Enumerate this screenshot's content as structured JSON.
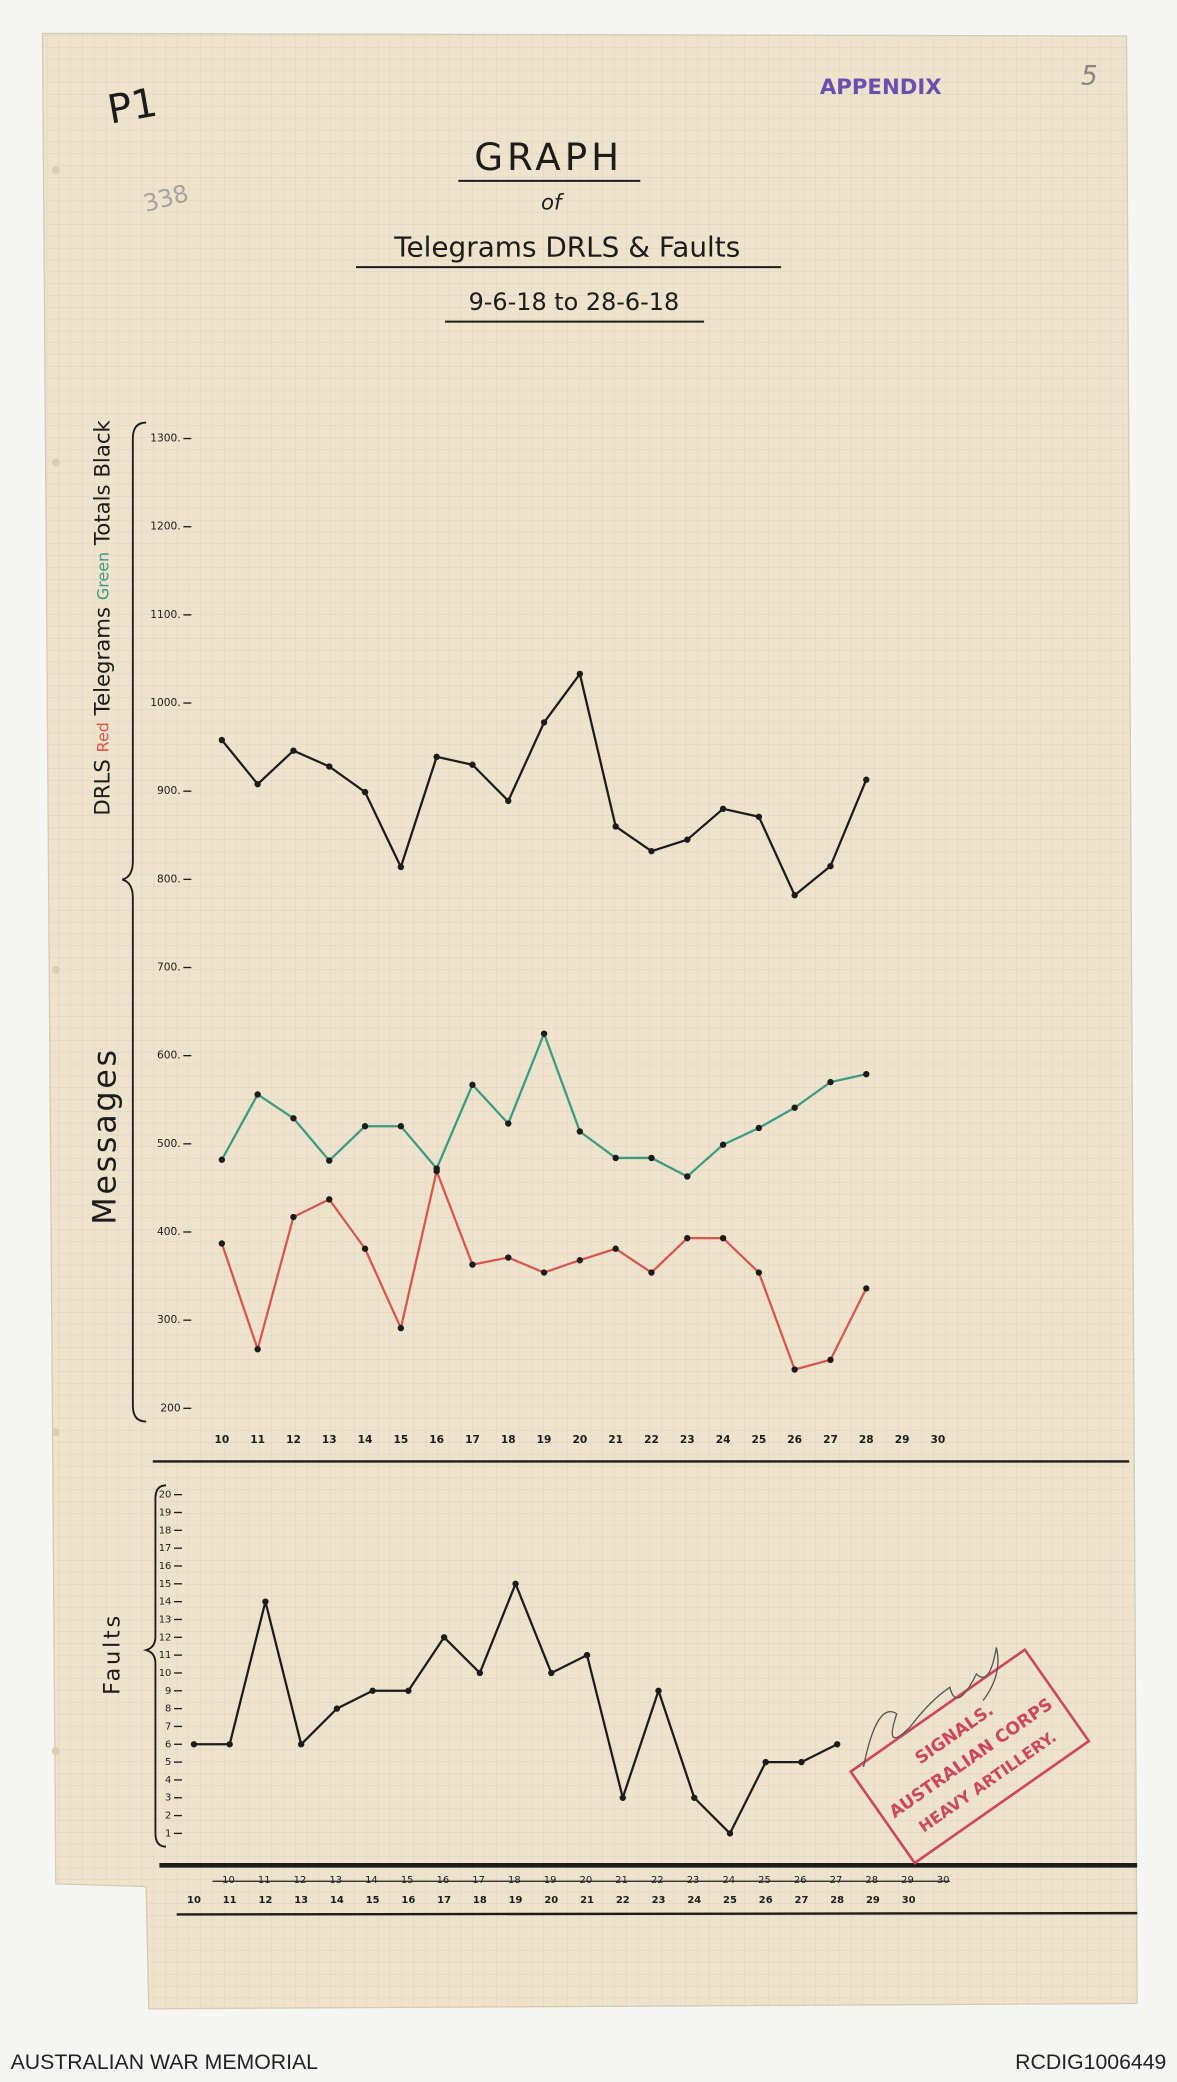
{
  "header": {
    "page_mark": "P1",
    "pencil_number": "338",
    "appendix_stamp": "APPENDIX",
    "page_number": "5",
    "title": "GRAPH",
    "title_of": "of",
    "subtitle": "Telegrams DRLS & Faults",
    "date_range": "9-6-18 to 28-6-18"
  },
  "chart_data": [
    {
      "type": "line",
      "y_label": "Messages",
      "x": [
        10,
        11,
        12,
        13,
        14,
        15,
        16,
        17,
        18,
        19,
        20,
        21,
        22,
        23,
        24,
        25,
        26,
        27,
        28
      ],
      "xlim": [
        10,
        30
      ],
      "xticks": [
        10,
        11,
        12,
        13,
        14,
        15,
        16,
        17,
        18,
        19,
        20,
        21,
        22,
        23,
        24,
        25,
        26,
        27,
        28,
        29,
        30
      ],
      "ylim": [
        200,
        1300
      ],
      "yticks": [
        {
          "value": 200,
          "label": "200"
        },
        {
          "value": 300,
          "label": "300."
        },
        {
          "value": 400,
          "label": "400."
        },
        {
          "value": 500,
          "label": "500."
        },
        {
          "value": 600,
          "label": "600."
        },
        {
          "value": 700,
          "label": "700."
        },
        {
          "value": 800,
          "label": "800."
        },
        {
          "value": 900,
          "label": "900."
        },
        {
          "value": 1000,
          "label": "1000."
        },
        {
          "value": 1100,
          "label": "1100."
        },
        {
          "value": 1200,
          "label": "1200."
        },
        {
          "value": 1300,
          "label": "1300."
        }
      ],
      "grid": true,
      "series": [
        {
          "name": "DRLS",
          "color_label": "Red",
          "color": "#d9534f",
          "values": [
            387,
            267,
            417,
            437,
            381,
            291,
            469,
            363,
            371,
            354,
            368,
            381,
            354,
            393,
            393,
            354,
            244,
            255,
            336
          ]
        },
        {
          "name": "Telegrams",
          "color_label": "Green",
          "color": "#3a9a82",
          "values": [
            482,
            556,
            529,
            481,
            520,
            520,
            472,
            567,
            523,
            625,
            514,
            484,
            484,
            463,
            499,
            518,
            541,
            570,
            579
          ]
        },
        {
          "name": "Totals",
          "color_label": "Black",
          "color": "#1e1c1a",
          "values": [
            958,
            908,
            946,
            928,
            899,
            814,
            939,
            930,
            889,
            978,
            1033,
            860,
            832,
            845,
            880,
            871,
            782,
            815,
            913
          ]
        }
      ]
    },
    {
      "type": "line",
      "y_label": "Faults",
      "x": [
        10,
        11,
        12,
        13,
        14,
        15,
        16,
        17,
        18,
        19,
        20,
        21,
        22,
        23,
        24,
        25,
        26,
        27,
        28
      ],
      "xlim": [
        10,
        30
      ],
      "xticks": [
        10,
        11,
        12,
        13,
        14,
        15,
        16,
        17,
        18,
        19,
        20,
        21,
        22,
        23,
        24,
        25,
        26,
        27,
        28,
        29,
        30
      ],
      "struck_xticks": [
        10,
        11,
        12,
        13,
        14,
        15,
        16,
        17,
        18,
        19,
        20,
        21,
        22,
        23,
        24,
        25,
        26,
        27,
        28,
        29,
        30
      ],
      "ylim": [
        1,
        20
      ],
      "yticks": [
        1,
        2,
        3,
        4,
        5,
        6,
        7,
        8,
        9,
        10,
        11,
        12,
        13,
        14,
        15,
        16,
        17,
        18,
        19,
        20
      ],
      "grid": true,
      "color": "#1e1c1a",
      "values": [
        6,
        6,
        14,
        6,
        8,
        9,
        9,
        12,
        10,
        15,
        10,
        11,
        3,
        9,
        3,
        1,
        5,
        5,
        6
      ]
    }
  ],
  "stamp": {
    "line1": "SIGNALS.",
    "line2": "AUSTRALIAN CORPS",
    "line3": "HEAVY ARTILLERY."
  },
  "footer": {
    "source": "AUSTRALIAN WAR MEMORIAL",
    "id": "RCDIG1006449"
  }
}
